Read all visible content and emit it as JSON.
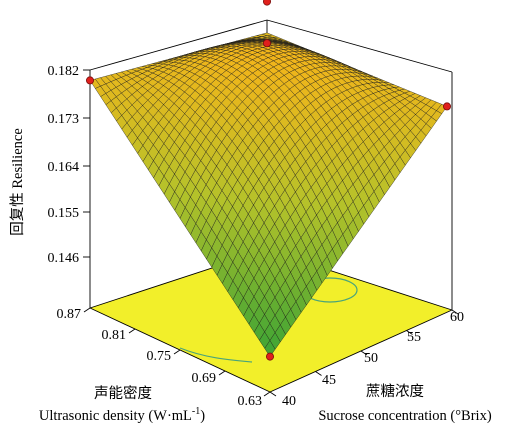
{
  "chart_data": {
    "type": "surface3d",
    "zlabel": "回复性 Resilience",
    "xlabel_cn": "声能密度",
    "xlabel_en": "Ultrasonic density (W·mL",
    "xlabel_en_sup": "-1",
    "xlabel_en_end": ")",
    "ylabel_cn": "蔗糖浓度",
    "ylabel_en": "Sucrose concentration (°Brix)",
    "x_ticks": [
      "0.87",
      "0.81",
      "0.75",
      "0.69",
      "0.63"
    ],
    "y_ticks": [
      "40",
      "45",
      "50",
      "55",
      "60"
    ],
    "z_ticks": [
      "0.182",
      "0.173",
      "0.164",
      "0.155",
      "0.146"
    ],
    "x_range": [
      0.63,
      0.87
    ],
    "y_range": [
      40,
      60
    ],
    "z_range": [
      0.146,
      0.182
    ],
    "surface_corners": [
      {
        "x": 0.63,
        "y": 40,
        "z": 0.143
      },
      {
        "x": 0.87,
        "y": 40,
        "z": 0.18
      },
      {
        "x": 0.63,
        "y": 60,
        "z": 0.18
      },
      {
        "x": 0.87,
        "y": 60,
        "z": 0.178
      }
    ],
    "surface_peak": {
      "z": 0.1825
    },
    "design_points": [
      {
        "x": 0.63,
        "y": 40,
        "z": 0.143
      },
      {
        "x": 0.87,
        "y": 40,
        "z": 0.18
      },
      {
        "x": 0.63,
        "y": 60,
        "z": 0.18
      },
      {
        "x": 0.87,
        "y": 60,
        "z": 0.184
      },
      {
        "x": 0.87,
        "y": 60,
        "z": 0.176
      }
    ],
    "colors": {
      "floor": "#f2ef2a",
      "surface_low": "#3aa335",
      "surface_mid": "#b5c22a",
      "surface_high": "#f2b51a",
      "mesh": "#1a1a1a",
      "point": "#e0201c",
      "contour": "#4aa47a"
    }
  }
}
